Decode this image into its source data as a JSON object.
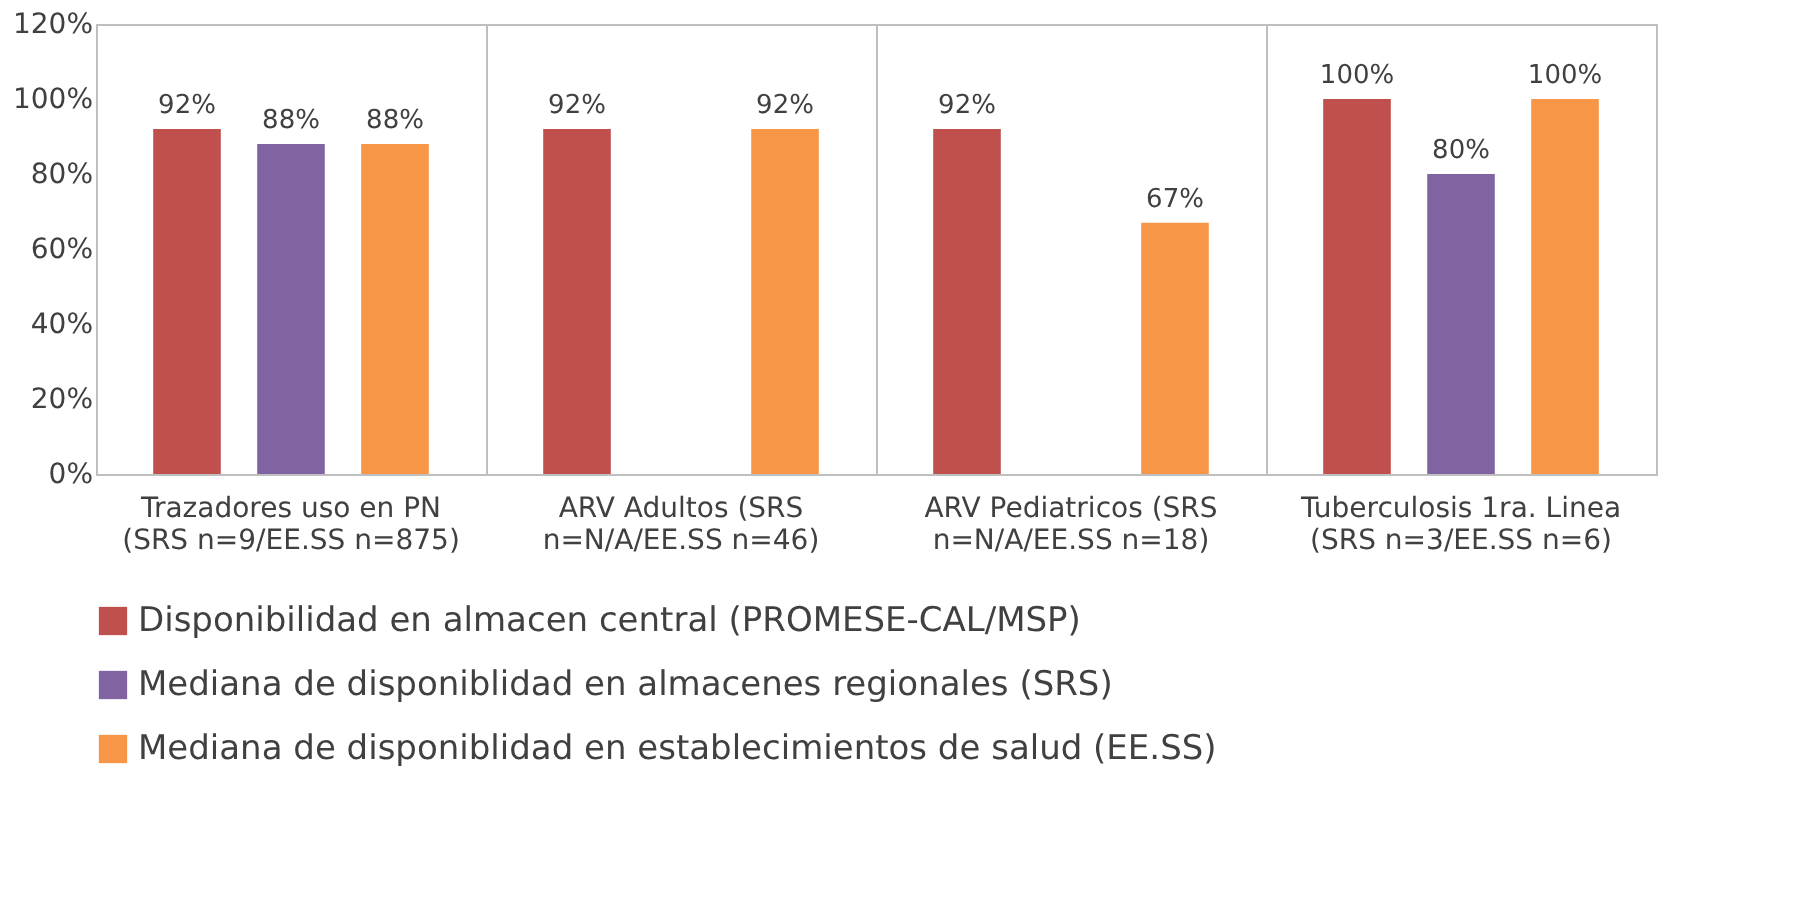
{
  "chart_data": {
    "type": "bar",
    "categories": [
      "Trazadores uso en PN\n(SRS n=9/EE.SS n=875)",
      "ARV Adultos (SRS\nn=N/A/EE.SS n=46)",
      "ARV Pediatricos (SRS\nn=N/A/EE.SS n=18)",
      "Tuberculosis 1ra. Linea\n(SRS n=3/EE.SS n=6)"
    ],
    "series": [
      {
        "name": "Disponibilidad en almacen central (PROMESE-CAL/MSP)",
        "color": "#c0504d",
        "values": [
          92,
          92,
          92,
          100
        ]
      },
      {
        "name": "Mediana de disponiblidad en almacenes regionales (SRS)",
        "color": "#8064a2",
        "values": [
          88,
          null,
          null,
          80
        ]
      },
      {
        "name": "Mediana de disponiblidad en establecimientos de salud (EE.SS)",
        "color": "#f79646",
        "values": [
          88,
          92,
          67,
          100
        ]
      }
    ],
    "value_labels": [
      [
        "92%",
        "92%",
        "92%",
        "100%"
      ],
      [
        "88%",
        null,
        null,
        "80%"
      ],
      [
        "88%",
        "92%",
        "67%",
        "100%"
      ]
    ],
    "ylim": [
      0,
      120
    ],
    "yticks": [
      {
        "value": 0,
        "label": "0%"
      },
      {
        "value": 20,
        "label": "20%"
      },
      {
        "value": 40,
        "label": "40%"
      },
      {
        "value": 60,
        "label": "60%"
      },
      {
        "value": 80,
        "label": "80%"
      },
      {
        "value": 100,
        "label": "100%"
      },
      {
        "value": 120,
        "label": "120%"
      }
    ],
    "grid": "x",
    "legend": "bottom"
  }
}
